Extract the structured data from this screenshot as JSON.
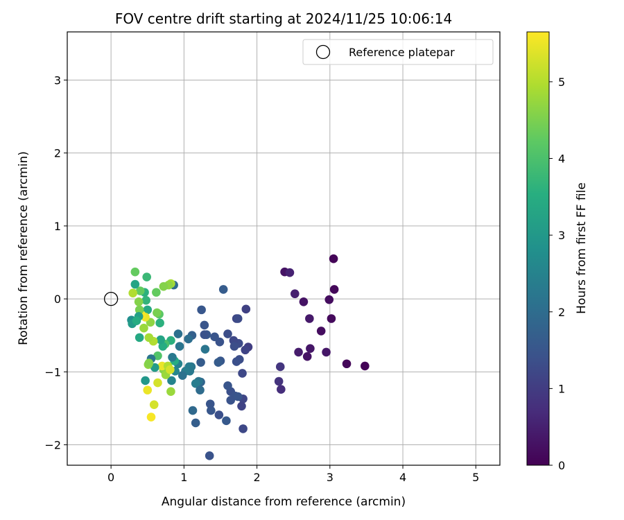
{
  "chart_data": {
    "type": "scatter",
    "title": "FOV centre drift starting at 2024/11/25 10:06:14",
    "xlabel": "Angular distance from reference (arcmin)",
    "ylabel": "Rotation from reference (arcmin)",
    "xlim": [
      -0.6,
      5.33
    ],
    "ylim": [
      -2.28,
      3.66
    ],
    "xticks": [
      0,
      1,
      2,
      3,
      4,
      5
    ],
    "yticks": [
      -2,
      -1,
      0,
      1,
      2,
      3
    ],
    "xtick_labels": [
      "0",
      "1",
      "2",
      "3",
      "4",
      "5"
    ],
    "ytick_labels": [
      "−2",
      "−1",
      "0",
      "1",
      "2",
      "3"
    ],
    "grid": true,
    "legend": {
      "position": "top-right",
      "entries": [
        "Reference platepar"
      ]
    },
    "reference_point": {
      "x": 0,
      "y": 0,
      "label": "Reference platepar"
    },
    "colorbar": {
      "label": "Hours from first FF file",
      "range": [
        0,
        5.65
      ],
      "ticks": [
        0,
        1,
        2,
        3,
        4,
        5
      ],
      "tick_labels": [
        "0",
        "1",
        "2",
        "3",
        "4",
        "5"
      ],
      "colormap": "viridis"
    },
    "points": [
      {
        "x": 3.05,
        "y": 0.55,
        "h": 0.05
      },
      {
        "x": 3.06,
        "y": 0.13,
        "h": 0.1
      },
      {
        "x": 2.99,
        "y": -0.01,
        "h": 0.2
      },
      {
        "x": 3.02,
        "y": -0.27,
        "h": 0.15
      },
      {
        "x": 3.23,
        "y": -0.89,
        "h": 0.1
      },
      {
        "x": 3.48,
        "y": -0.92,
        "h": 0.05
      },
      {
        "x": 2.88,
        "y": -0.44,
        "h": 0.2
      },
      {
        "x": 2.95,
        "y": -0.73,
        "h": 0.35
      },
      {
        "x": 2.72,
        "y": -0.27,
        "h": 0.4
      },
      {
        "x": 2.73,
        "y": -0.68,
        "h": 0.35
      },
      {
        "x": 2.64,
        "y": -0.04,
        "h": 0.3
      },
      {
        "x": 2.52,
        "y": 0.07,
        "h": 0.5
      },
      {
        "x": 2.57,
        "y": -0.73,
        "h": 0.45
      },
      {
        "x": 2.69,
        "y": -0.79,
        "h": 0.3
      },
      {
        "x": 2.38,
        "y": 0.37,
        "h": 0.3
      },
      {
        "x": 2.45,
        "y": 0.36,
        "h": 0.55
      },
      {
        "x": 2.32,
        "y": -0.93,
        "h": 0.9
      },
      {
        "x": 2.3,
        "y": -1.13,
        "h": 0.85
      },
      {
        "x": 2.33,
        "y": -1.24,
        "h": 0.75
      },
      {
        "x": 1.85,
        "y": -0.14,
        "h": 1.1
      },
      {
        "x": 1.88,
        "y": -0.66,
        "h": 1.05
      },
      {
        "x": 1.84,
        "y": -0.7,
        "h": 1.15
      },
      {
        "x": 1.8,
        "y": -1.02,
        "h": 1.25
      },
      {
        "x": 1.81,
        "y": -1.37,
        "h": 1.2
      },
      {
        "x": 1.79,
        "y": -1.47,
        "h": 1.15
      },
      {
        "x": 1.81,
        "y": -1.78,
        "h": 1.25
      },
      {
        "x": 1.75,
        "y": -0.61,
        "h": 1.3
      },
      {
        "x": 1.76,
        "y": -0.83,
        "h": 1.35
      },
      {
        "x": 1.72,
        "y": -0.86,
        "h": 1.4
      },
      {
        "x": 1.72,
        "y": -0.27,
        "h": 1.2
      },
      {
        "x": 1.74,
        "y": -0.27,
        "h": 1.3
      },
      {
        "x": 1.68,
        "y": -0.57,
        "h": 1.25
      },
      {
        "x": 1.69,
        "y": -0.65,
        "h": 1.35
      },
      {
        "x": 1.64,
        "y": -1.27,
        "h": 1.4
      },
      {
        "x": 1.7,
        "y": -1.33,
        "h": 1.45
      },
      {
        "x": 1.74,
        "y": -1.34,
        "h": 1.5
      },
      {
        "x": 1.64,
        "y": -1.39,
        "h": 1.45
      },
      {
        "x": 1.6,
        "y": -1.19,
        "h": 1.5
      },
      {
        "x": 1.6,
        "y": -0.48,
        "h": 1.35
      },
      {
        "x": 1.58,
        "y": -1.67,
        "h": 1.6
      },
      {
        "x": 1.54,
        "y": 0.13,
        "h": 1.65
      },
      {
        "x": 1.49,
        "y": -0.59,
        "h": 1.45
      },
      {
        "x": 1.5,
        "y": -0.85,
        "h": 1.55
      },
      {
        "x": 1.47,
        "y": -0.87,
        "h": 1.65
      },
      {
        "x": 1.48,
        "y": -1.59,
        "h": 1.4
      },
      {
        "x": 1.42,
        "y": -0.52,
        "h": 1.5
      },
      {
        "x": 1.37,
        "y": -1.53,
        "h": 1.55
      },
      {
        "x": 1.36,
        "y": -1.44,
        "h": 1.5
      },
      {
        "x": 1.35,
        "y": -2.15,
        "h": 1.45
      },
      {
        "x": 1.31,
        "y": -0.49,
        "h": 1.6
      },
      {
        "x": 1.28,
        "y": -0.49,
        "h": 1.45
      },
      {
        "x": 1.28,
        "y": -0.36,
        "h": 1.5
      },
      {
        "x": 1.29,
        "y": -0.69,
        "h": 2.2
      },
      {
        "x": 1.24,
        "y": -0.15,
        "h": 1.55
      },
      {
        "x": 1.23,
        "y": -0.87,
        "h": 1.65
      },
      {
        "x": 1.23,
        "y": -1.14,
        "h": 1.85
      },
      {
        "x": 1.2,
        "y": -1.13,
        "h": 2.2
      },
      {
        "x": 1.16,
        "y": -1.16,
        "h": 2.4
      },
      {
        "x": 1.16,
        "y": -1.7,
        "h": 1.7
      },
      {
        "x": 1.12,
        "y": -1.53,
        "h": 1.95
      },
      {
        "x": 1.11,
        "y": -0.5,
        "h": 1.75
      },
      {
        "x": 1.06,
        "y": -0.55,
        "h": 2.05
      },
      {
        "x": 1.1,
        "y": -0.93,
        "h": 2.2
      },
      {
        "x": 1.07,
        "y": -0.93,
        "h": 2.35
      },
      {
        "x": 1.08,
        "y": -0.99,
        "h": 2.3
      },
      {
        "x": 1.22,
        "y": -1.25,
        "h": 2.0
      },
      {
        "x": 1.02,
        "y": -0.99,
        "h": 2.4
      },
      {
        "x": 0.98,
        "y": -1.05,
        "h": 2.15
      },
      {
        "x": 0.94,
        "y": -0.65,
        "h": 2.2
      },
      {
        "x": 0.92,
        "y": -0.48,
        "h": 2.1
      },
      {
        "x": 0.92,
        "y": -0.89,
        "h": 2.5
      },
      {
        "x": 0.88,
        "y": -0.99,
        "h": 2.6
      },
      {
        "x": 0.87,
        "y": -0.85,
        "h": 3.5
      },
      {
        "x": 0.84,
        "y": -0.8,
        "h": 2.3
      },
      {
        "x": 0.83,
        "y": -1.12,
        "h": 2.55
      },
      {
        "x": 0.82,
        "y": -0.57,
        "h": 3.6
      },
      {
        "x": 0.86,
        "y": 0.19,
        "h": 2.0
      },
      {
        "x": 0.82,
        "y": 0.21,
        "h": 4.9
      },
      {
        "x": 0.79,
        "y": 0.19,
        "h": 4.7
      },
      {
        "x": 0.72,
        "y": 0.17,
        "h": 4.6
      },
      {
        "x": 0.74,
        "y": -0.62,
        "h": 4.0
      },
      {
        "x": 0.71,
        "y": -0.65,
        "h": 3.5
      },
      {
        "x": 0.72,
        "y": -0.97,
        "h": 4.6
      },
      {
        "x": 0.75,
        "y": -1.04,
        "h": 4.8
      },
      {
        "x": 0.7,
        "y": -0.92,
        "h": 5.5
      },
      {
        "x": 0.78,
        "y": -0.92,
        "h": 5.0
      },
      {
        "x": 0.81,
        "y": -0.97,
        "h": 5.3
      },
      {
        "x": 0.82,
        "y": -1.27,
        "h": 4.8
      },
      {
        "x": 0.68,
        "y": -0.56,
        "h": 3.3
      },
      {
        "x": 0.67,
        "y": -0.33,
        "h": 3.6
      },
      {
        "x": 0.66,
        "y": -0.21,
        "h": 4.2
      },
      {
        "x": 0.63,
        "y": -0.19,
        "h": 4.5
      },
      {
        "x": 0.62,
        "y": 0.09,
        "h": 4.3
      },
      {
        "x": 0.64,
        "y": -0.78,
        "h": 4.1
      },
      {
        "x": 0.64,
        "y": -1.15,
        "h": 5.3
      },
      {
        "x": 0.59,
        "y": -1.45,
        "h": 5.3
      },
      {
        "x": 0.58,
        "y": -0.58,
        "h": 5.0
      },
      {
        "x": 0.6,
        "y": -0.94,
        "h": 3.1
      },
      {
        "x": 0.55,
        "y": -0.82,
        "h": 2.2
      },
      {
        "x": 0.55,
        "y": -1.62,
        "h": 5.6
      },
      {
        "x": 0.52,
        "y": -0.53,
        "h": 4.9
      },
      {
        "x": 0.51,
        "y": -0.9,
        "h": 4.7
      },
      {
        "x": 0.52,
        "y": -0.88,
        "h": 4.6
      },
      {
        "x": 0.5,
        "y": -1.25,
        "h": 5.5
      },
      {
        "x": 0.47,
        "y": -1.12,
        "h": 3.0
      },
      {
        "x": 0.46,
        "y": 0.09,
        "h": 3.6
      },
      {
        "x": 0.49,
        "y": 0.3,
        "h": 3.8
      },
      {
        "x": 0.48,
        "y": -0.02,
        "h": 3.7
      },
      {
        "x": 0.5,
        "y": -0.15,
        "h": 3.4
      },
      {
        "x": 0.54,
        "y": -0.32,
        "h": 4.7
      },
      {
        "x": 0.47,
        "y": -0.25,
        "h": 5.5
      },
      {
        "x": 0.42,
        "y": -0.22,
        "h": 5.6
      },
      {
        "x": 0.45,
        "y": -0.4,
        "h": 4.8
      },
      {
        "x": 0.4,
        "y": 0.11,
        "h": 4.3
      },
      {
        "x": 0.39,
        "y": -0.53,
        "h": 3.4
      },
      {
        "x": 0.39,
        "y": -0.15,
        "h": 4.5
      },
      {
        "x": 0.38,
        "y": -0.04,
        "h": 4.6
      },
      {
        "x": 0.38,
        "y": -0.24,
        "h": 3.2
      },
      {
        "x": 0.33,
        "y": 0.37,
        "h": 4.3
      },
      {
        "x": 0.33,
        "y": 0.2,
        "h": 3.3
      },
      {
        "x": 0.3,
        "y": 0.08,
        "h": 5.0
      },
      {
        "x": 0.28,
        "y": -0.29,
        "h": 2.8
      },
      {
        "x": 0.29,
        "y": -0.34,
        "h": 3.1
      },
      {
        "x": 0.35,
        "y": -0.3,
        "h": 3.5
      }
    ]
  }
}
